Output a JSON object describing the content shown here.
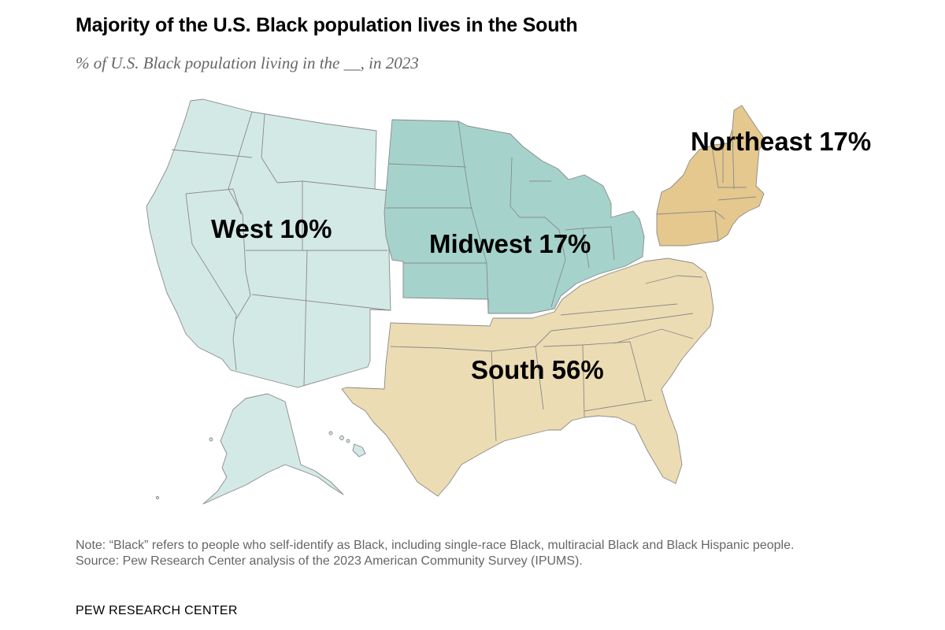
{
  "title": "Majority of the U.S. Black population lives in the South",
  "subtitle": "% of U.S. Black population living in the __, in 2023",
  "regions": [
    {
      "name": "West",
      "value": 10,
      "label": "West 10%",
      "color": "#d3e9e5"
    },
    {
      "name": "Midwest",
      "value": 17,
      "label": "Midwest 17%",
      "color": "#a5d3cb"
    },
    {
      "name": "Northeast",
      "value": 17,
      "label": "Northeast 17%",
      "color": "#e4c88e"
    },
    {
      "name": "South",
      "value": 56,
      "label": "South 56%",
      "color": "#ecdcb3"
    }
  ],
  "note": "Note: “Black” refers to people who self-identify as Black, including single-race Black, multiracial Black and Black Hispanic people.",
  "source": "Source: Pew Research Center analysis of the 2023 American Community Survey (IPUMS).",
  "brand": "PEW RESEARCH CENTER"
}
